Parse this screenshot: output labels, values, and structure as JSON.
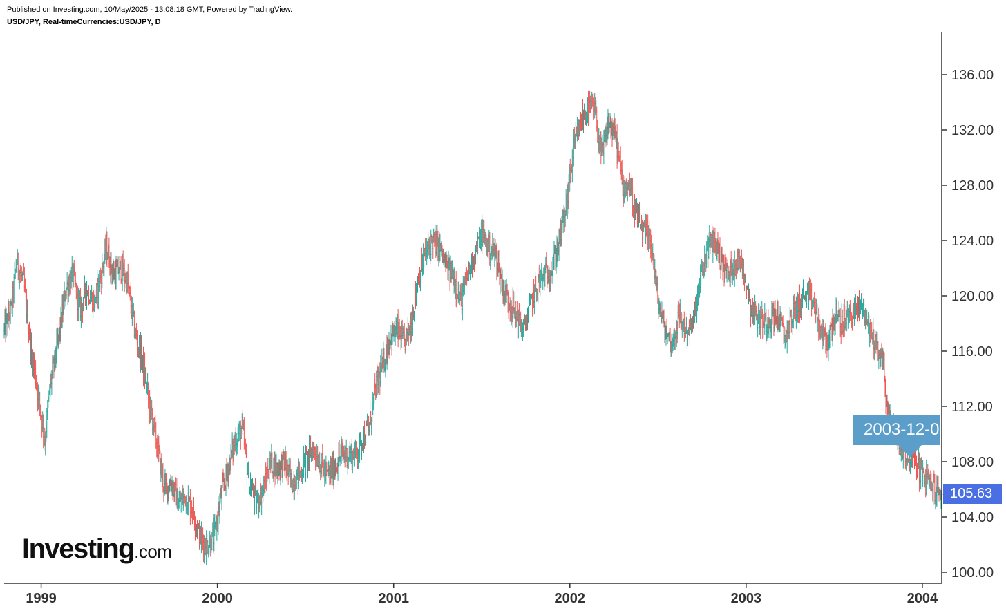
{
  "header": {
    "published": "Published on Investing.com, 10/May/2025 - 13:08:18 GMT, Powered by TradingView.",
    "symbol": "USD/JPY, Real-timeCurrencies:USD/JPY, D"
  },
  "logo": {
    "main": "Investing",
    "suffix": ".com"
  },
  "colors": {
    "up": "#26a69a",
    "down": "#ef5350",
    "axis": "#333333",
    "last_price_bg": "#4a6fe3",
    "date_tag_bg": "#5b9ec9"
  },
  "chart_data": {
    "type": "ohlc",
    "instrument": "USD/JPY",
    "interval": "D",
    "x_axis": {
      "ticks": [
        "1999",
        "2000",
        "2001",
        "2002",
        "2003",
        "2004"
      ]
    },
    "y_axis": {
      "position": "right",
      "ticks": [
        "100.00",
        "104.00",
        "108.00",
        "112.00",
        "116.00",
        "120.00",
        "124.00",
        "128.00",
        "132.00",
        "136.00"
      ],
      "range": [
        99,
        139
      ]
    },
    "x_range": [
      1998.79,
      2004.11
    ],
    "grid": false,
    "last_price": "105.63",
    "last_price_value": 105.63,
    "crosshair_date_label": "2003-12-0",
    "series": [
      {
        "values_approx": [
          [
            1998.79,
            117.5
          ],
          [
            1998.83,
            119.0
          ],
          [
            1998.86,
            122.5
          ],
          [
            1998.9,
            121.0
          ],
          [
            1998.94,
            116.5
          ],
          [
            1998.97,
            114.0
          ],
          [
            1999.0,
            111.5
          ],
          [
            1999.02,
            109.5
          ],
          [
            1999.05,
            113.5
          ],
          [
            1999.1,
            117.0
          ],
          [
            1999.14,
            120.5
          ],
          [
            1999.18,
            121.5
          ],
          [
            1999.22,
            119.0
          ],
          [
            1999.26,
            120.5
          ],
          [
            1999.3,
            119.5
          ],
          [
            1999.34,
            121.5
          ],
          [
            1999.37,
            123.5
          ],
          [
            1999.41,
            121.5
          ],
          [
            1999.45,
            122.0
          ],
          [
            1999.49,
            121.0
          ],
          [
            1999.53,
            117.5
          ],
          [
            1999.57,
            115.5
          ],
          [
            1999.61,
            112.5
          ],
          [
            1999.66,
            109.0
          ],
          [
            1999.7,
            106.0
          ],
          [
            1999.74,
            106.5
          ],
          [
            1999.78,
            105.0
          ],
          [
            1999.82,
            105.5
          ],
          [
            1999.86,
            104.5
          ],
          [
            1999.9,
            102.5
          ],
          [
            1999.94,
            102.0
          ],
          [
            1999.98,
            102.5
          ],
          [
            2000.02,
            105.5
          ],
          [
            2000.06,
            107.5
          ],
          [
            2000.1,
            109.5
          ],
          [
            2000.14,
            110.5
          ],
          [
            2000.18,
            106.5
          ],
          [
            2000.22,
            105.0
          ],
          [
            2000.26,
            106.0
          ],
          [
            2000.3,
            108.0
          ],
          [
            2000.34,
            107.5
          ],
          [
            2000.38,
            108.0
          ],
          [
            2000.42,
            106.5
          ],
          [
            2000.46,
            107.0
          ],
          [
            2000.5,
            108.0
          ],
          [
            2000.54,
            109.0
          ],
          [
            2000.58,
            108.0
          ],
          [
            2000.62,
            107.0
          ],
          [
            2000.66,
            107.5
          ],
          [
            2000.7,
            108.5
          ],
          [
            2000.74,
            108.5
          ],
          [
            2000.78,
            108.5
          ],
          [
            2000.82,
            109.5
          ],
          [
            2000.86,
            110.5
          ],
          [
            2000.9,
            113.5
          ],
          [
            2000.94,
            115.0
          ],
          [
            2000.98,
            117.0
          ],
          [
            2001.02,
            117.5
          ],
          [
            2001.06,
            116.5
          ],
          [
            2001.1,
            118.0
          ],
          [
            2001.14,
            121.5
          ],
          [
            2001.18,
            123.0
          ],
          [
            2001.22,
            124.0
          ],
          [
            2001.26,
            123.5
          ],
          [
            2001.3,
            122.0
          ],
          [
            2001.34,
            121.5
          ],
          [
            2001.38,
            119.5
          ],
          [
            2001.42,
            121.5
          ],
          [
            2001.46,
            123.0
          ],
          [
            2001.5,
            124.5
          ],
          [
            2001.54,
            123.5
          ],
          [
            2001.58,
            123.0
          ],
          [
            2001.62,
            120.5
          ],
          [
            2001.66,
            119.5
          ],
          [
            2001.7,
            118.5
          ],
          [
            2001.74,
            117.5
          ],
          [
            2001.78,
            119.5
          ],
          [
            2001.82,
            121.0
          ],
          [
            2001.86,
            121.5
          ],
          [
            2001.9,
            122.0
          ],
          [
            2001.94,
            124.0
          ],
          [
            2001.98,
            126.5
          ],
          [
            2002.02,
            130.5
          ],
          [
            2002.06,
            132.5
          ],
          [
            2002.1,
            133.5
          ],
          [
            2002.14,
            133.5
          ],
          [
            2002.18,
            130.0
          ],
          [
            2002.22,
            132.5
          ],
          [
            2002.26,
            131.5
          ],
          [
            2002.3,
            128.0
          ],
          [
            2002.34,
            128.0
          ],
          [
            2002.38,
            125.5
          ],
          [
            2002.42,
            124.5
          ],
          [
            2002.46,
            124.0
          ],
          [
            2002.5,
            119.5
          ],
          [
            2002.54,
            117.5
          ],
          [
            2002.58,
            116.5
          ],
          [
            2002.62,
            118.5
          ],
          [
            2002.66,
            117.5
          ],
          [
            2002.7,
            118.0
          ],
          [
            2002.74,
            121.0
          ],
          [
            2002.78,
            123.5
          ],
          [
            2002.82,
            124.0
          ],
          [
            2002.86,
            122.5
          ],
          [
            2002.9,
            121.5
          ],
          [
            2002.94,
            122.5
          ],
          [
            2002.98,
            122.5
          ],
          [
            2003.02,
            119.5
          ],
          [
            2003.06,
            118.5
          ],
          [
            2003.1,
            118.0
          ],
          [
            2003.14,
            118.5
          ],
          [
            2003.18,
            118.5
          ],
          [
            2003.22,
            117.0
          ],
          [
            2003.26,
            118.5
          ],
          [
            2003.3,
            119.5
          ],
          [
            2003.34,
            120.0
          ],
          [
            2003.38,
            119.5
          ],
          [
            2003.42,
            117.5
          ],
          [
            2003.46,
            116.5
          ],
          [
            2003.5,
            118.5
          ],
          [
            2003.54,
            118.0
          ],
          [
            2003.58,
            118.5
          ],
          [
            2003.62,
            119.0
          ],
          [
            2003.66,
            119.5
          ],
          [
            2003.7,
            117.5
          ],
          [
            2003.74,
            116.5
          ],
          [
            2003.78,
            115.0
          ],
          [
            2003.8,
            111.5
          ],
          [
            2003.84,
            110.5
          ],
          [
            2003.88,
            109.0
          ],
          [
            2003.92,
            108.5
          ],
          [
            2003.96,
            108.0
          ],
          [
            2004.0,
            107.0
          ],
          [
            2004.04,
            106.5
          ],
          [
            2004.08,
            105.8
          ],
          [
            2004.11,
            105.6
          ]
        ]
      }
    ]
  }
}
